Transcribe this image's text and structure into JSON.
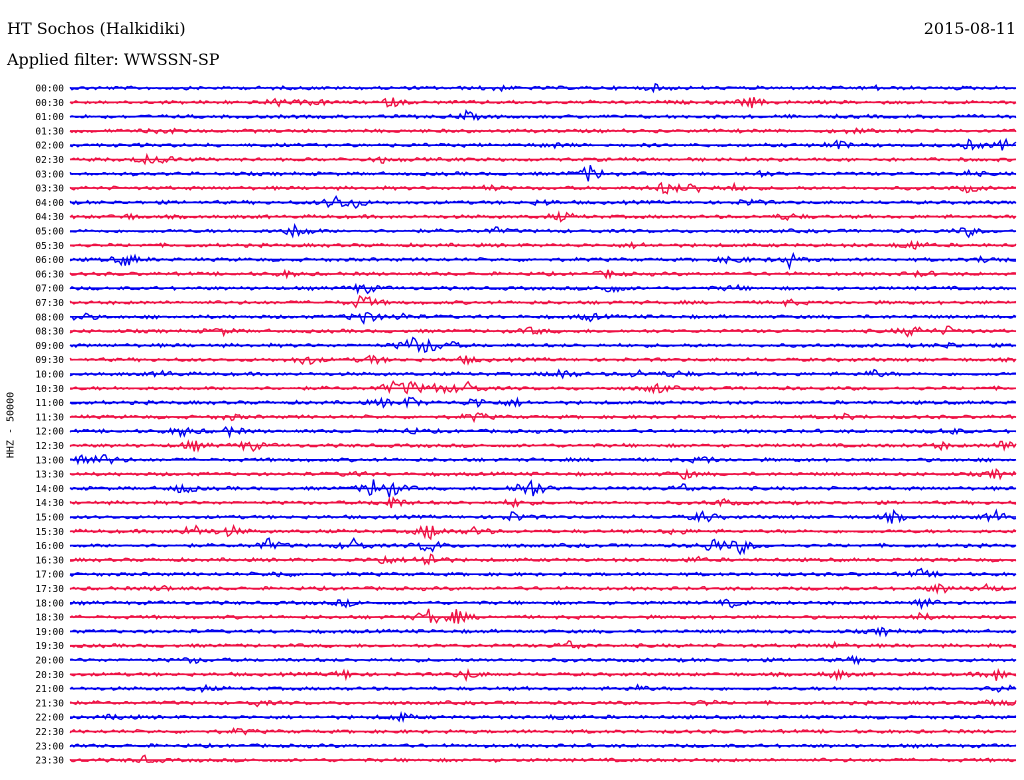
{
  "header": {
    "station": "HT Sochos (Halkidiki)",
    "date": "2015-08-11",
    "filter": "Applied filter: WWSSN-SP"
  },
  "chart_data": {
    "type": "line",
    "title": "HT Sochos (Halkidiki)",
    "subtitle": "Applied filter: WWSSN-SP",
    "ylabel": "HHZ - 50000",
    "xlabel": "",
    "grid": false,
    "colors": [
      "#0000ee",
      "#ee1144"
    ],
    "rows": [
      {
        "label": "00:00",
        "events": [
          [
            0.45,
            0.3
          ],
          [
            0.62,
            0.3
          ],
          [
            0.85,
            0.2
          ]
        ]
      },
      {
        "label": "00:30",
        "events": [
          [
            0.22,
            0.4
          ],
          [
            0.26,
            0.3
          ],
          [
            0.34,
            0.5
          ],
          [
            0.72,
            0.6
          ]
        ]
      },
      {
        "label": "01:00",
        "events": [
          [
            0.42,
            0.5
          ]
        ]
      },
      {
        "label": "01:30",
        "events": [
          [
            0.1,
            0.3
          ],
          [
            0.83,
            0.3
          ]
        ]
      },
      {
        "label": "02:00",
        "events": [
          [
            0.51,
            0.3
          ],
          [
            0.81,
            0.6
          ],
          [
            0.95,
            0.5
          ],
          [
            0.99,
            0.7
          ]
        ]
      },
      {
        "label": "02:30",
        "events": [
          [
            0.08,
            0.4
          ],
          [
            0.1,
            0.4
          ],
          [
            0.33,
            0.3
          ]
        ]
      },
      {
        "label": "03:00",
        "events": [
          [
            0.55,
            1.0
          ],
          [
            0.73,
            0.3
          ],
          [
            0.95,
            0.3
          ]
        ]
      },
      {
        "label": "03:30",
        "events": [
          [
            0.44,
            0.4
          ],
          [
            0.63,
            0.8
          ],
          [
            0.66,
            0.6
          ],
          [
            0.7,
            0.4
          ],
          [
            0.95,
            0.4
          ]
        ]
      },
      {
        "label": "04:00",
        "events": [
          [
            0.28,
            0.8
          ],
          [
            0.3,
            0.6
          ],
          [
            0.5,
            0.3
          ],
          [
            0.72,
            0.4
          ]
        ]
      },
      {
        "label": "04:30",
        "events": [
          [
            0.06,
            0.3
          ],
          [
            0.52,
            0.5
          ],
          [
            0.76,
            0.4
          ]
        ]
      },
      {
        "label": "05:00",
        "events": [
          [
            0.24,
            0.9
          ],
          [
            0.45,
            0.3
          ],
          [
            0.95,
            0.5
          ]
        ]
      },
      {
        "label": "05:30",
        "events": [
          [
            0.6,
            0.3
          ],
          [
            0.89,
            0.6
          ]
        ]
      },
      {
        "label": "06:00",
        "events": [
          [
            0.06,
            0.8
          ],
          [
            0.7,
            0.5
          ],
          [
            0.76,
            0.8
          ],
          [
            0.97,
            0.5
          ]
        ]
      },
      {
        "label": "06:30",
        "events": [
          [
            0.23,
            0.3
          ],
          [
            0.57,
            0.4
          ],
          [
            0.9,
            0.3
          ]
        ]
      },
      {
        "label": "07:00",
        "events": [
          [
            0.31,
            0.7
          ],
          [
            0.57,
            0.6
          ],
          [
            0.7,
            0.3
          ]
        ]
      },
      {
        "label": "07:30",
        "events": [
          [
            0.31,
            1.0
          ],
          [
            0.76,
            0.3
          ]
        ]
      },
      {
        "label": "08:00",
        "events": [
          [
            0.01,
            0.6
          ],
          [
            0.31,
            1.0
          ],
          [
            0.35,
            0.4
          ],
          [
            0.55,
            0.4
          ]
        ]
      },
      {
        "label": "08:30",
        "events": [
          [
            0.16,
            0.4
          ],
          [
            0.49,
            0.4
          ],
          [
            0.89,
            0.7
          ],
          [
            0.93,
            0.5
          ]
        ]
      },
      {
        "label": "09:00",
        "events": [
          [
            0.36,
            1.0
          ],
          [
            0.38,
            0.8
          ],
          [
            0.4,
            0.4
          ],
          [
            0.93,
            0.3
          ]
        ]
      },
      {
        "label": "09:30",
        "events": [
          [
            0.25,
            0.6
          ],
          [
            0.32,
            0.5
          ],
          [
            0.42,
            0.4
          ]
        ]
      },
      {
        "label": "10:00",
        "events": [
          [
            0.1,
            0.3
          ],
          [
            0.52,
            0.6
          ],
          [
            0.6,
            0.4
          ],
          [
            0.64,
            0.4
          ],
          [
            0.85,
            0.4
          ]
        ]
      },
      {
        "label": "10:30",
        "events": [
          [
            0.34,
            0.6
          ],
          [
            0.36,
            0.8
          ],
          [
            0.39,
            0.6
          ],
          [
            0.42,
            0.8
          ],
          [
            0.62,
            0.6
          ]
        ]
      },
      {
        "label": "11:00",
        "events": [
          [
            0.33,
            0.4
          ],
          [
            0.36,
            0.6
          ],
          [
            0.43,
            0.6
          ],
          [
            0.47,
            0.4
          ]
        ]
      },
      {
        "label": "11:30",
        "events": [
          [
            0.17,
            0.3
          ],
          [
            0.43,
            0.5
          ],
          [
            0.82,
            0.3
          ]
        ]
      },
      {
        "label": "12:00",
        "events": [
          [
            0.12,
            0.6
          ],
          [
            0.17,
            0.5
          ],
          [
            0.36,
            0.3
          ],
          [
            0.93,
            0.4
          ]
        ]
      },
      {
        "label": "12:30",
        "events": [
          [
            0.13,
            0.6
          ],
          [
            0.19,
            0.7
          ],
          [
            0.92,
            0.4
          ],
          [
            0.99,
            0.7
          ]
        ]
      },
      {
        "label": "13:00",
        "events": [
          [
            0.01,
            0.9
          ],
          [
            0.04,
            0.6
          ],
          [
            0.67,
            0.4
          ]
        ]
      },
      {
        "label": "13:30",
        "events": [
          [
            0.3,
            0.3
          ],
          [
            0.65,
            0.5
          ],
          [
            0.98,
            0.5
          ]
        ]
      },
      {
        "label": "14:00",
        "events": [
          [
            0.12,
            0.6
          ],
          [
            0.32,
            1.0
          ],
          [
            0.34,
            0.9
          ],
          [
            0.48,
            0.8
          ],
          [
            0.49,
            0.8
          ],
          [
            0.65,
            0.5
          ]
        ]
      },
      {
        "label": "14:30",
        "events": [
          [
            0.34,
            0.8
          ],
          [
            0.47,
            0.4
          ],
          [
            0.69,
            0.4
          ]
        ]
      },
      {
        "label": "15:00",
        "events": [
          [
            0.47,
            0.6
          ],
          [
            0.67,
            0.7
          ],
          [
            0.87,
            0.6
          ],
          [
            0.98,
            0.7
          ]
        ]
      },
      {
        "label": "15:30",
        "events": [
          [
            0.13,
            0.8
          ],
          [
            0.17,
            0.6
          ],
          [
            0.38,
            1.0
          ],
          [
            0.43,
            0.5
          ],
          [
            0.64,
            0.4
          ]
        ]
      },
      {
        "label": "16:00",
        "events": [
          [
            0.21,
            0.7
          ],
          [
            0.3,
            0.8
          ],
          [
            0.38,
            0.9
          ],
          [
            0.68,
            0.9
          ],
          [
            0.71,
            0.9
          ]
        ]
      },
      {
        "label": "16:30",
        "events": [
          [
            0.33,
            0.6
          ],
          [
            0.38,
            1.0
          ],
          [
            0.66,
            0.3
          ]
        ]
      },
      {
        "label": "17:00",
        "events": [
          [
            0.22,
            0.3
          ],
          [
            0.9,
            0.5
          ]
        ]
      },
      {
        "label": "17:30",
        "events": [
          [
            0.1,
            0.3
          ],
          [
            0.92,
            0.6
          ],
          [
            0.97,
            0.5
          ]
        ]
      },
      {
        "label": "18:00",
        "events": [
          [
            0.29,
            0.4
          ],
          [
            0.7,
            0.4
          ],
          [
            0.9,
            0.7
          ]
        ]
      },
      {
        "label": "18:30",
        "events": [
          [
            0.38,
            1.0
          ],
          [
            0.41,
            0.8
          ],
          [
            0.9,
            0.4
          ]
        ]
      },
      {
        "label": "19:00",
        "events": [
          [
            0.86,
            0.4
          ]
        ]
      },
      {
        "label": "19:30",
        "events": [
          [
            0.53,
            0.6
          ],
          [
            0.81,
            0.3
          ]
        ]
      },
      {
        "label": "20:00",
        "events": [
          [
            0.13,
            0.3
          ],
          [
            0.83,
            0.3
          ]
        ]
      },
      {
        "label": "20:30",
        "events": [
          [
            0.29,
            0.5
          ],
          [
            0.42,
            0.6
          ],
          [
            0.81,
            0.5
          ],
          [
            0.98,
            0.7
          ]
        ]
      },
      {
        "label": "21:00",
        "events": [
          [
            0.14,
            0.3
          ],
          [
            0.6,
            0.3
          ],
          [
            0.99,
            1.0
          ]
        ]
      },
      {
        "label": "21:30",
        "events": [
          [
            0.2,
            0.3
          ],
          [
            0.67,
            0.3
          ],
          [
            0.98,
            0.6
          ]
        ]
      },
      {
        "label": "22:00",
        "events": [
          [
            0.05,
            0.3
          ],
          [
            0.35,
            0.5
          ],
          [
            0.52,
            0.3
          ]
        ]
      },
      {
        "label": "22:30",
        "events": [
          [
            0.18,
            0.3
          ]
        ]
      },
      {
        "label": "23:00",
        "events": []
      },
      {
        "label": "23:30",
        "events": [
          [
            0.08,
            0.4
          ]
        ]
      }
    ]
  }
}
